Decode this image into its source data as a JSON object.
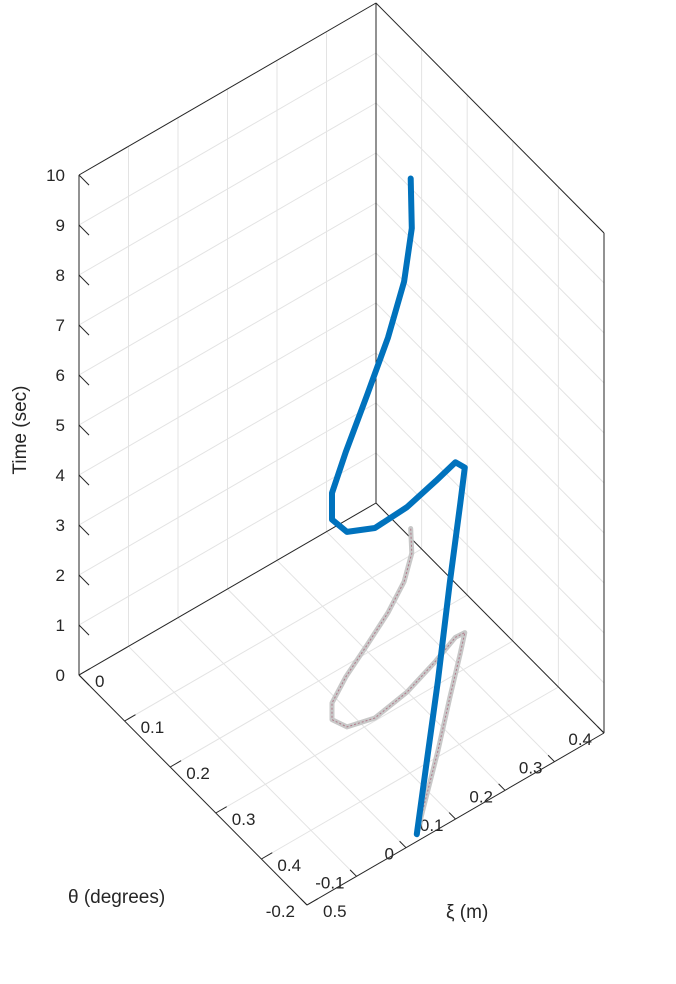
{
  "chart_data": {
    "type": "line",
    "view": "3d",
    "grid": true,
    "axes": {
      "x": {
        "label": "ξ (m)",
        "range": [
          0,
          0.5
        ],
        "ticks": [
          "0",
          "0.1",
          "0.2",
          "0.3",
          "0.4",
          "0.5"
        ]
      },
      "y": {
        "label": "θ (degrees)",
        "range": [
          -0.2,
          0.4
        ],
        "ticks": [
          "-0.2",
          "-0.1",
          "0",
          "0.1",
          "0.2",
          "0.3",
          "0.4"
        ]
      },
      "z": {
        "label": "Time (sec)",
        "range": [
          0,
          10
        ],
        "ticks": [
          "0",
          "1",
          "2",
          "3",
          "4",
          "5",
          "6",
          "7",
          "8",
          "9",
          "10"
        ]
      }
    },
    "series": [
      {
        "kind": "trajectory",
        "color": "#0072BD",
        "points": [
          {
            "xi": 0.49,
            "theta": 0.031,
            "t": 0.0
          },
          {
            "xi": 0.448,
            "theta": 0.088,
            "t": 0.6
          },
          {
            "xi": 0.392,
            "theta": 0.164,
            "t": 1.4
          },
          {
            "xi": 0.328,
            "theta": 0.247,
            "t": 2.3
          },
          {
            "xi": 0.275,
            "theta": 0.317,
            "t": 3.0
          },
          {
            "xi": 0.25,
            "theta": 0.349,
            "t": 3.3
          },
          {
            "xi": 0.249,
            "theta": 0.331,
            "t": 3.5
          },
          {
            "xi": 0.266,
            "theta": 0.276,
            "t": 3.6
          },
          {
            "xi": 0.286,
            "theta": 0.199,
            "t": 3.7
          },
          {
            "xi": 0.296,
            "theta": 0.125,
            "t": 3.8
          },
          {
            "xi": 0.286,
            "theta": 0.078,
            "t": 3.9
          },
          {
            "xi": 0.264,
            "theta": 0.068,
            "t": 4.0
          },
          {
            "xi": 0.241,
            "theta": 0.089,
            "t": 4.2
          },
          {
            "xi": 0.216,
            "theta": 0.14,
            "t": 4.5
          },
          {
            "xi": 0.189,
            "theta": 0.208,
            "t": 5.0
          },
          {
            "xi": 0.161,
            "theta": 0.276,
            "t": 5.5
          },
          {
            "xi": 0.131,
            "theta": 0.336,
            "t": 6.0
          },
          {
            "xi": 0.098,
            "theta": 0.382,
            "t": 6.5
          },
          {
            "xi": 0.063,
            "theta": 0.412,
            "t": 7.0
          }
        ]
      },
      {
        "kind": "projection on t = 0",
        "color": "#c8c8c8",
        "points": [
          {
            "xi": 0.49,
            "theta": 0.031,
            "t": 0
          },
          {
            "xi": 0.448,
            "theta": 0.088,
            "t": 0
          },
          {
            "xi": 0.392,
            "theta": 0.164,
            "t": 0
          },
          {
            "xi": 0.328,
            "theta": 0.247,
            "t": 0
          },
          {
            "xi": 0.275,
            "theta": 0.317,
            "t": 0
          },
          {
            "xi": 0.25,
            "theta": 0.349,
            "t": 0
          },
          {
            "xi": 0.249,
            "theta": 0.331,
            "t": 0
          },
          {
            "xi": 0.266,
            "theta": 0.276,
            "t": 0
          },
          {
            "xi": 0.286,
            "theta": 0.199,
            "t": 0
          },
          {
            "xi": 0.296,
            "theta": 0.125,
            "t": 0
          },
          {
            "xi": 0.286,
            "theta": 0.078,
            "t": 0
          },
          {
            "xi": 0.264,
            "theta": 0.068,
            "t": 0
          },
          {
            "xi": 0.241,
            "theta": 0.089,
            "t": 0
          },
          {
            "xi": 0.216,
            "theta": 0.14,
            "t": 0
          },
          {
            "xi": 0.189,
            "theta": 0.208,
            "t": 0
          },
          {
            "xi": 0.161,
            "theta": 0.276,
            "t": 0
          },
          {
            "xi": 0.131,
            "theta": 0.336,
            "t": 0
          },
          {
            "xi": 0.098,
            "theta": 0.382,
            "t": 0
          },
          {
            "xi": 0.063,
            "theta": 0.412,
            "t": 0
          }
        ]
      }
    ]
  }
}
